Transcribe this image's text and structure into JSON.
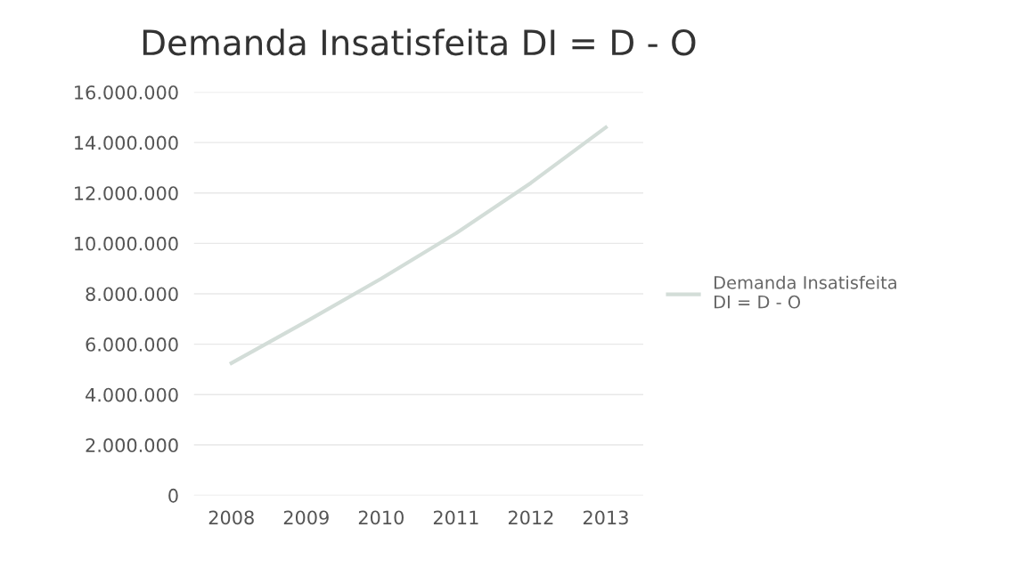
{
  "chart_data": {
    "type": "line",
    "title": "Demanda Insatisfeita DI = D - O",
    "categories": [
      "2008",
      "2009",
      "2010",
      "2011",
      "2012",
      "2013"
    ],
    "series": [
      {
        "name": "Demanda Insatisfeita\nDI = D - O",
        "color": "#d3ddd8",
        "values": [
          5250000,
          6900000,
          8600000,
          10400000,
          12400000,
          14600000
        ]
      }
    ],
    "ylim": [
      0,
      16000000
    ],
    "yticks": [
      {
        "value": 0,
        "label": "0"
      },
      {
        "value": 2000000,
        "label": "2.000.000"
      },
      {
        "value": 4000000,
        "label": "4.000.000"
      },
      {
        "value": 6000000,
        "label": "6.000.000"
      },
      {
        "value": 8000000,
        "label": "8.000.000"
      },
      {
        "value": 10000000,
        "label": "10.000.000"
      },
      {
        "value": 12000000,
        "label": "12.000.000"
      },
      {
        "value": 14000000,
        "label": "14.000.000"
      },
      {
        "value": 16000000,
        "label": "16.000.000"
      }
    ],
    "grid": "y",
    "legend": "right",
    "marker": "none",
    "line_style": "solid"
  }
}
